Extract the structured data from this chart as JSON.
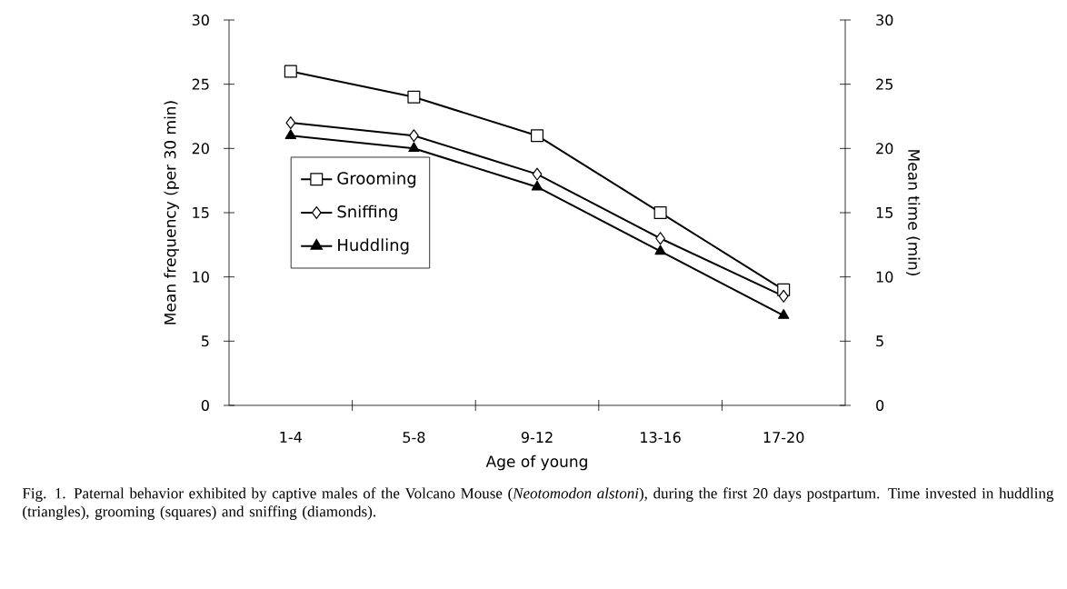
{
  "chart_data": {
    "type": "line",
    "xlabel": "Age of young",
    "ylabel": "Mean frequency (per 30 min)",
    "y2label": "Mean time (min)",
    "categories": [
      "1-4",
      "5-8",
      "9-12",
      "13-16",
      "17-20"
    ],
    "series": [
      {
        "name": "Grooming",
        "color": "#000000",
        "marker": "square",
        "values": [
          26,
          24,
          21,
          15,
          9
        ]
      },
      {
        "name": "Sniffing",
        "color": "#000000",
        "marker": "diamond",
        "values": [
          22,
          21,
          18,
          13,
          8.5
        ]
      },
      {
        "name": "Huddling",
        "color": "#000000",
        "marker": "triangle",
        "axis": "y2",
        "values": [
          21,
          20,
          17,
          12,
          7
        ]
      }
    ],
    "ylim": [
      0,
      30
    ],
    "yticks": [
      0,
      5,
      10,
      15,
      20,
      25,
      30
    ],
    "y2lim": [
      0,
      30
    ],
    "y2ticks": [
      0,
      5,
      10,
      15,
      20,
      25,
      30
    ],
    "legend": "center left",
    "grid": false,
    "line_style": "solid",
    "annotations": [
      "Fig. 1. Paternal behavior exhibited by captive males of the Volcano Mouse (*Neotomodon alstoni*), during the first 20 days postpartum. Time invested in huddling (triangles), grooming (squares) and sniffing (diamonds)."
    ]
  }
}
